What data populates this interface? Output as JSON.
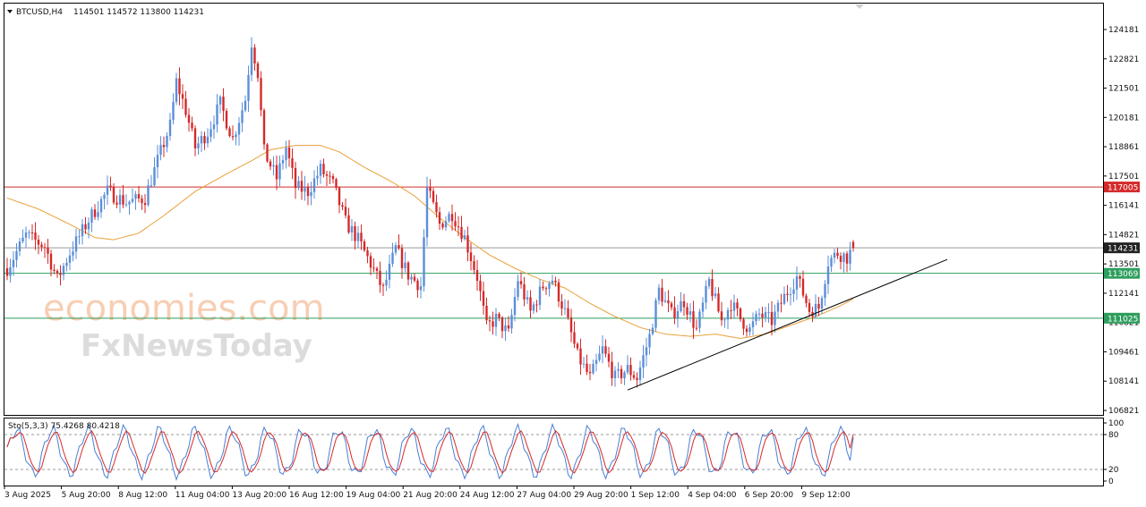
{
  "header": {
    "symbol": "BTCUSD,H4",
    "ohlc": "114501 114572 113800 114231"
  },
  "watermark": {
    "line1": "economies.com",
    "line2": "FxNewsToday"
  },
  "colors": {
    "bull": "#5b8fd8",
    "bear": "#d42a2a",
    "ma": "#e8a13a",
    "resistance": "#d42a2a",
    "support": "#2e9e5e",
    "current": "#222222",
    "trend": "#000000",
    "stoch_main": "#4b7fd6",
    "stoch_signal": "#d42a2a"
  },
  "chart_data": [
    {
      "type": "candlestick",
      "title": "",
      "timeframe": "H4",
      "x_tick_labels": [
        "3 Aug 2025",
        "5 Aug 20:00",
        "8 Aug 12:00",
        "11 Aug 04:00",
        "13 Aug 20:00",
        "16 Aug 12:00",
        "19 Aug 04:00",
        "21 Aug 20:00",
        "24 Aug 12:00",
        "27 Aug 04:00",
        "29 Aug 20:00",
        "1 Sep 12:00",
        "4 Sep 04:00",
        "6 Sep 20:00",
        "9 Sep 12:00"
      ],
      "y_tick_labels": [
        "124181",
        "122821",
        "121501",
        "120181",
        "118861",
        "117501",
        "116141",
        "114821",
        "113501",
        "112141",
        "110821",
        "109461",
        "108141",
        "106821"
      ],
      "ylim": [
        106821,
        124181
      ],
      "price_path": [
        [
          0,
          113300
        ],
        [
          6,
          114800
        ],
        [
          12,
          114300
        ],
        [
          16,
          112800
        ],
        [
          20,
          114000
        ],
        [
          26,
          115500
        ],
        [
          32,
          116800
        ],
        [
          38,
          116300
        ],
        [
          44,
          116500
        ],
        [
          48,
          118200
        ],
        [
          52,
          119800
        ],
        [
          54,
          121800
        ],
        [
          57,
          120500
        ],
        [
          60,
          118800
        ],
        [
          64,
          119500
        ],
        [
          68,
          120800
        ],
        [
          72,
          119200
        ],
        [
          76,
          121000
        ],
        [
          78,
          123600
        ],
        [
          80,
          122200
        ],
        [
          82,
          118600
        ],
        [
          86,
          117400
        ],
        [
          89,
          118800
        ],
        [
          92,
          117000
        ],
        [
          96,
          116800
        ],
        [
          100,
          117800
        ],
        [
          104,
          117100
        ],
        [
          108,
          115400
        ],
        [
          112,
          114600
        ],
        [
          116,
          113500
        ],
        [
          120,
          112300
        ],
        [
          124,
          114200
        ],
        [
          128,
          113000
        ],
        [
          132,
          112500
        ],
        [
          134,
          116900
        ],
        [
          138,
          115300
        ],
        [
          142,
          115800
        ],
        [
          146,
          114700
        ],
        [
          150,
          112900
        ],
        [
          153,
          110600
        ],
        [
          156,
          111000
        ],
        [
          160,
          110300
        ],
        [
          163,
          112800
        ],
        [
          167,
          111300
        ],
        [
          171,
          112500
        ],
        [
          174,
          112800
        ],
        [
          178,
          111300
        ],
        [
          182,
          109300
        ],
        [
          186,
          108300
        ],
        [
          190,
          109600
        ],
        [
          194,
          108300
        ],
        [
          198,
          108700
        ],
        [
          201,
          108300
        ],
        [
          205,
          110200
        ],
        [
          208,
          112300
        ],
        [
          212,
          111200
        ],
        [
          216,
          111800
        ],
        [
          220,
          110500
        ],
        [
          224,
          112700
        ],
        [
          228,
          110900
        ],
        [
          231,
          111700
        ],
        [
          234,
          111000
        ],
        [
          237,
          110500
        ],
        [
          240,
          111200
        ],
        [
          244,
          110900
        ],
        [
          248,
          112000
        ],
        [
          252,
          112900
        ],
        [
          256,
          111400
        ],
        [
          259,
          111500
        ],
        [
          262,
          113600
        ],
        [
          265,
          114000
        ],
        [
          268,
          113800
        ],
        [
          270,
          114231
        ]
      ],
      "moving_average": [
        [
          0,
          116500
        ],
        [
          10,
          116000
        ],
        [
          20,
          115300
        ],
        [
          28,
          114700
        ],
        [
          34,
          114600
        ],
        [
          42,
          114900
        ],
        [
          50,
          115700
        ],
        [
          60,
          116800
        ],
        [
          70,
          117600
        ],
        [
          78,
          118200
        ],
        [
          84,
          118700
        ],
        [
          92,
          118900
        ],
        [
          100,
          118900
        ],
        [
          106,
          118600
        ],
        [
          114,
          117900
        ],
        [
          122,
          117300
        ],
        [
          130,
          116600
        ],
        [
          138,
          115600
        ],
        [
          146,
          114700
        ],
        [
          154,
          113900
        ],
        [
          162,
          113300
        ],
        [
          170,
          112800
        ],
        [
          178,
          112400
        ],
        [
          186,
          111700
        ],
        [
          194,
          111100
        ],
        [
          202,
          110600
        ],
        [
          210,
          110300
        ],
        [
          218,
          110200
        ],
        [
          226,
          110300
        ],
        [
          234,
          110100
        ],
        [
          242,
          110300
        ],
        [
          250,
          110700
        ],
        [
          258,
          111100
        ],
        [
          266,
          111600
        ],
        [
          270,
          111900
        ]
      ],
      "levels": [
        {
          "id": "resistance",
          "price": 117005,
          "label": "117005"
        },
        {
          "id": "current",
          "price": 114231,
          "label": "114231"
        },
        {
          "id": "support1",
          "price": 113069,
          "label": "113069"
        },
        {
          "id": "support2",
          "price": 111025,
          "label": "111025"
        }
      ],
      "trendline": {
        "from": [
          198,
          107750
        ],
        "to": [
          300,
          113700
        ]
      }
    },
    {
      "type": "line",
      "title": "Sto(5,3,3) 75.4268 80.4218",
      "ylim": [
        0,
        100
      ],
      "y_tick_labels": [
        "100",
        "80",
        "20",
        "0"
      ],
      "levels": [
        80,
        20
      ],
      "main_last": 75.4268,
      "signal_last": 80.4218
    }
  ]
}
